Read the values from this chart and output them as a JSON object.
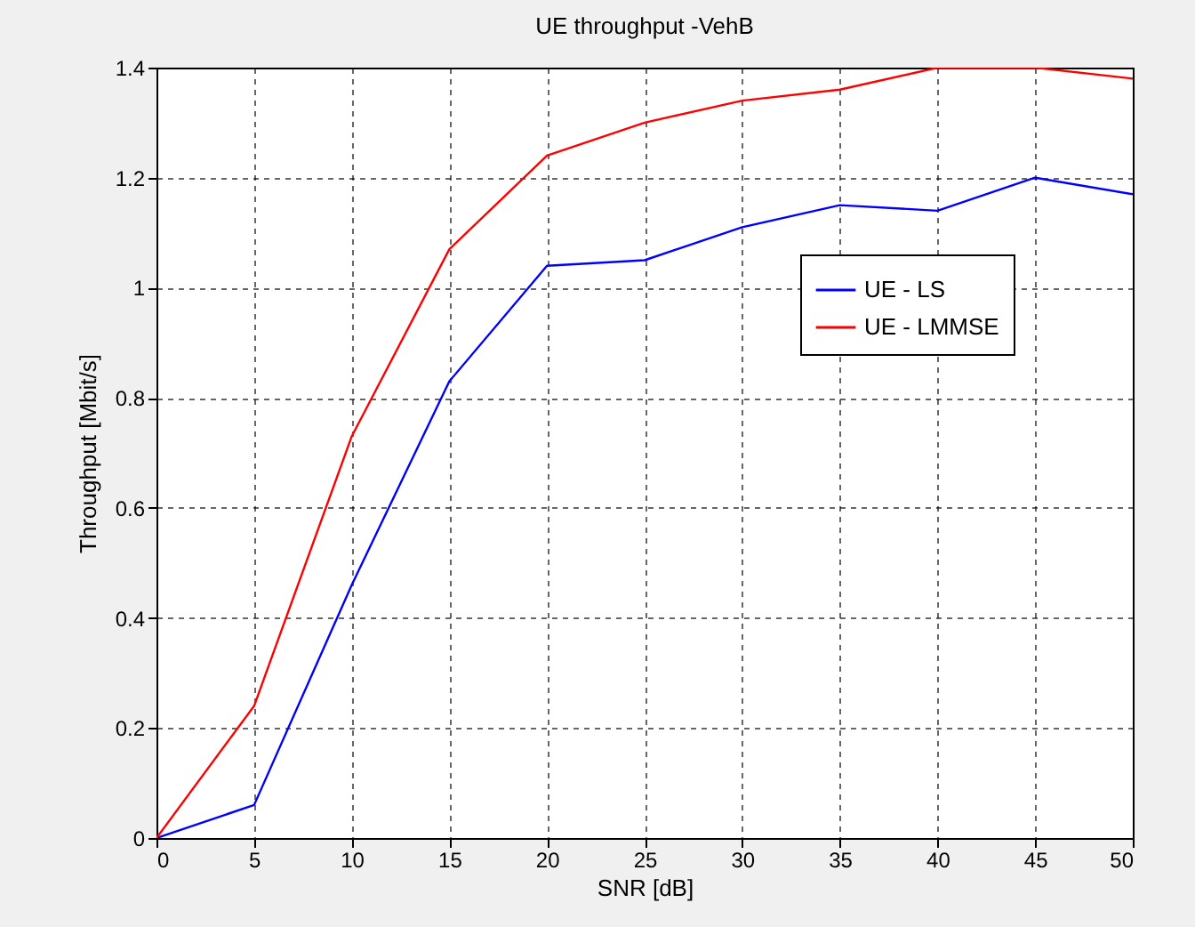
{
  "chart_data": {
    "type": "line",
    "title": "UE throughput -VehB",
    "xlabel": "SNR [dB]",
    "ylabel": "Throughput [Mbit/s]",
    "x": [
      0,
      5,
      10,
      15,
      20,
      25,
      30,
      35,
      40,
      45,
      50
    ],
    "series": [
      {
        "name": "UE - LS",
        "color": "#0000ff",
        "values": [
          0,
          0.06,
          0.46,
          0.83,
          1.04,
          1.05,
          1.11,
          1.15,
          1.14,
          1.2,
          1.17
        ]
      },
      {
        "name": "UE - LMMSE",
        "color": "#ff0000",
        "values": [
          0,
          0.24,
          0.73,
          1.07,
          1.24,
          1.3,
          1.34,
          1.36,
          1.4,
          1.4,
          1.38
        ]
      }
    ],
    "xlim": [
      0,
      50
    ],
    "xticks": [
      0,
      5,
      10,
      15,
      20,
      25,
      30,
      35,
      40,
      45,
      50
    ],
    "ylim": [
      0,
      1.4
    ],
    "yticks": [
      0,
      0.2,
      0.4,
      0.6,
      0.8,
      1,
      1.2,
      1.4
    ],
    "grid": true,
    "legend": "top right",
    "line_style": "solid",
    "marker": "none"
  }
}
